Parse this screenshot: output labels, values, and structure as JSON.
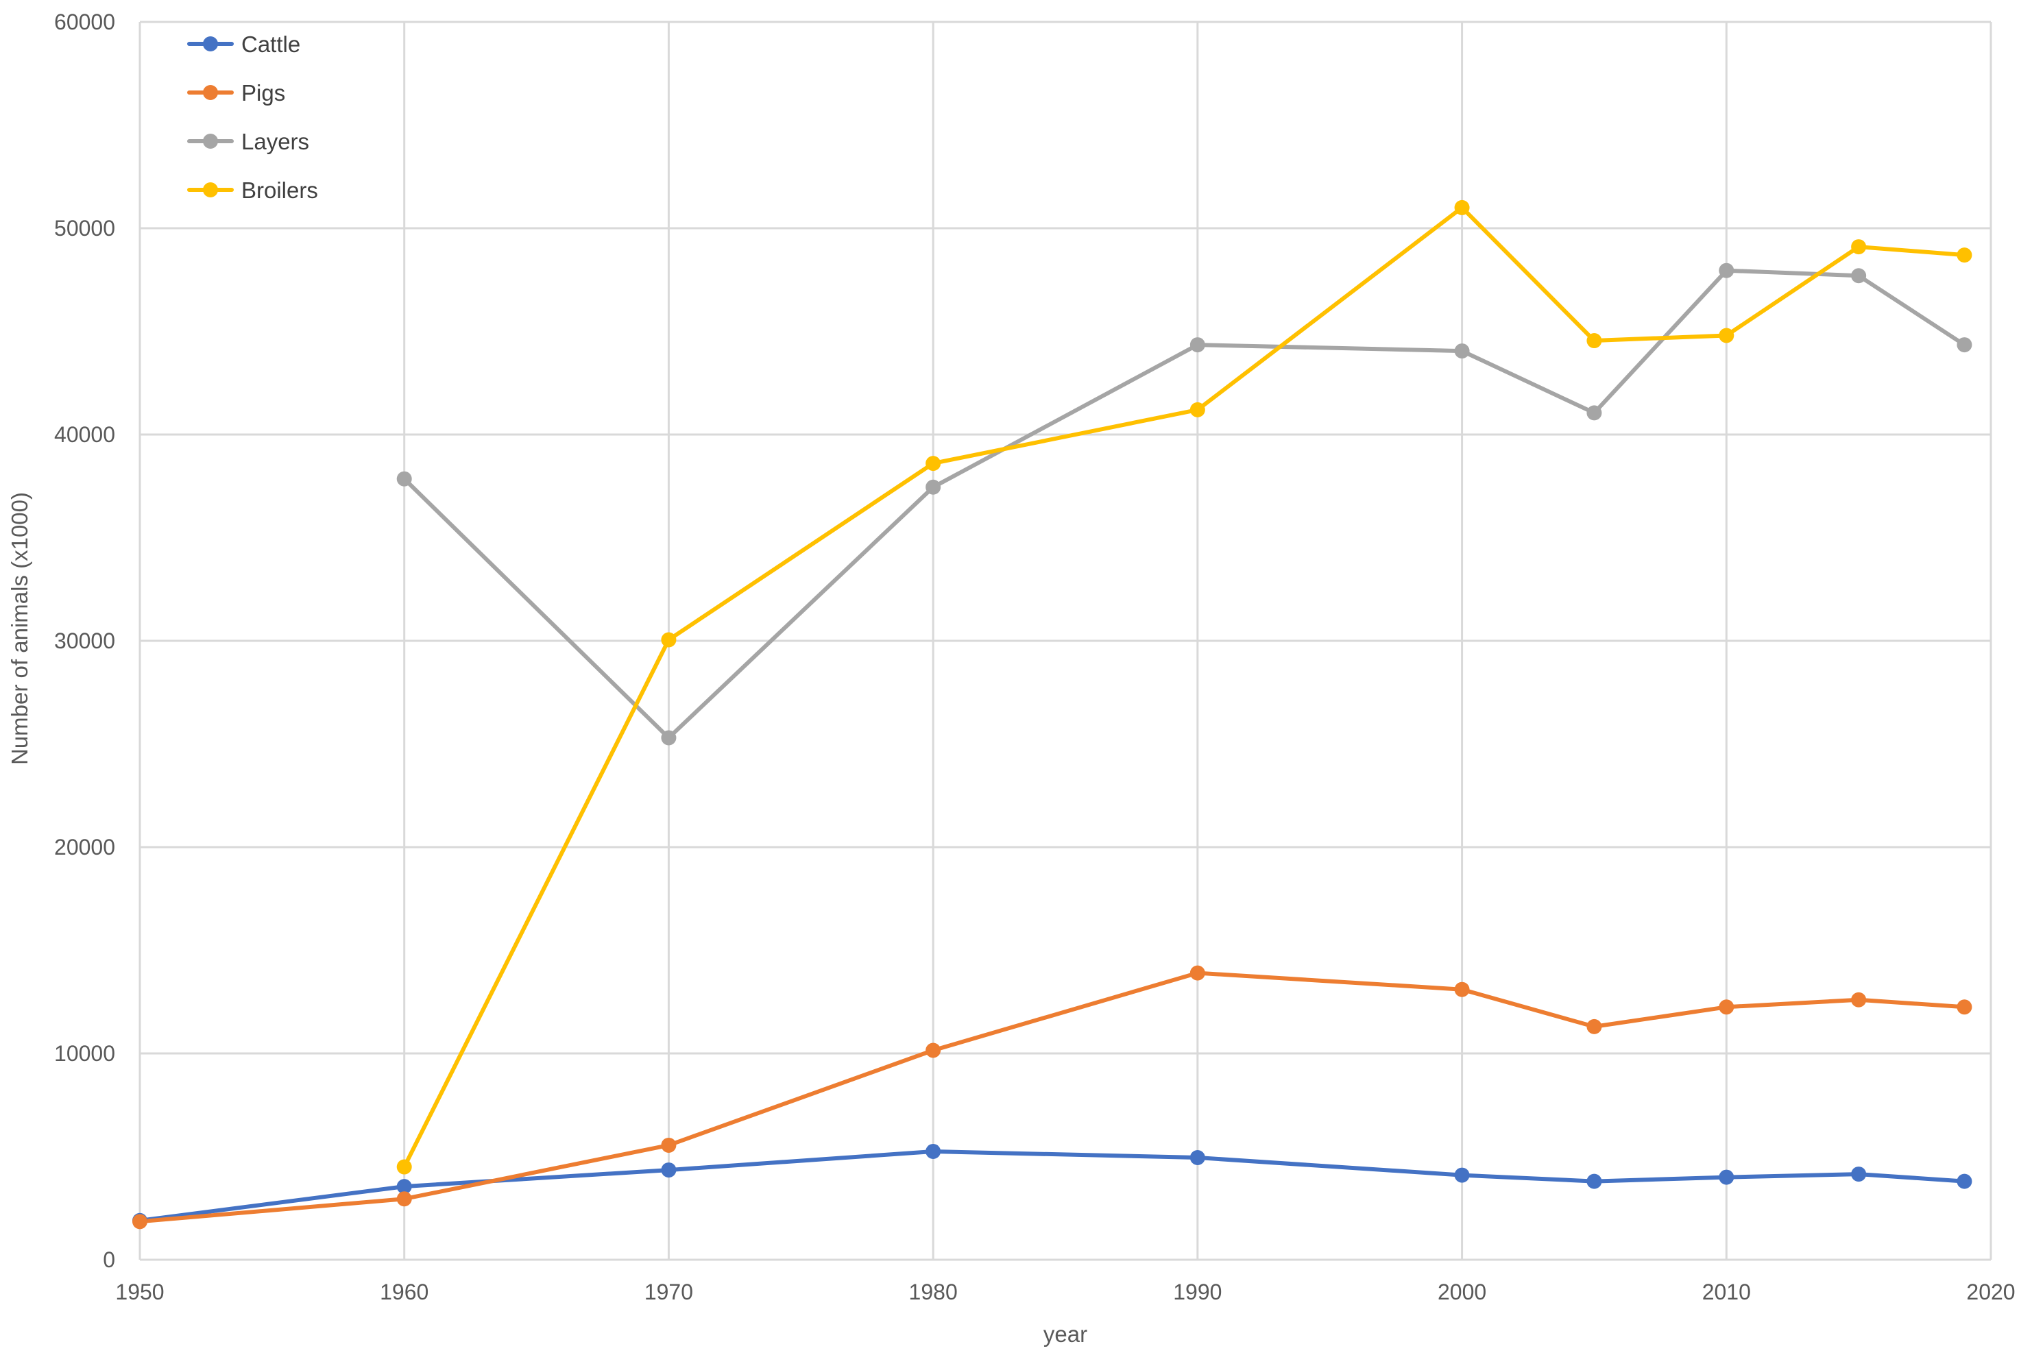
{
  "chart_data": {
    "type": "line",
    "title": "",
    "xlabel": "year",
    "ylabel": "Number of animals (x1000)",
    "xlim": [
      1950,
      2020
    ],
    "ylim": [
      0,
      60000
    ],
    "x_ticks": [
      1950,
      1960,
      1970,
      1980,
      1990,
      2000,
      2010,
      2020
    ],
    "y_ticks": [
      0,
      10000,
      20000,
      30000,
      40000,
      50000,
      60000
    ],
    "grid": true,
    "legend_position": "top-left",
    "series": [
      {
        "name": "Cattle",
        "color": "#4472c4",
        "points": [
          [
            1950,
            1900
          ],
          [
            1960,
            3550
          ],
          [
            1970,
            4350
          ],
          [
            1980,
            5250
          ],
          [
            1990,
            4950
          ],
          [
            2000,
            4100
          ],
          [
            2005,
            3800
          ],
          [
            2010,
            4000
          ],
          [
            2015,
            4150
          ],
          [
            2019,
            3800
          ]
        ]
      },
      {
        "name": "Pigs",
        "color": "#ed7d31",
        "points": [
          [
            1950,
            1850
          ],
          [
            1960,
            2950
          ],
          [
            1970,
            5550
          ],
          [
            1980,
            10150
          ],
          [
            1990,
            13900
          ],
          [
            2000,
            13100
          ],
          [
            2005,
            11300
          ],
          [
            2010,
            12250
          ],
          [
            2015,
            12600
          ],
          [
            2019,
            12250
          ]
        ]
      },
      {
        "name": "Layers",
        "color": "#a5a5a5",
        "points": [
          [
            1960,
            37850
          ],
          [
            1970,
            25300
          ],
          [
            1980,
            37450
          ],
          [
            1990,
            44350
          ],
          [
            2000,
            44050
          ],
          [
            2005,
            41050
          ],
          [
            2010,
            47950
          ],
          [
            2015,
            47700
          ],
          [
            2019,
            44350
          ]
        ]
      },
      {
        "name": "Broilers",
        "color": "#ffc000",
        "points": [
          [
            1960,
            4500
          ],
          [
            1970,
            30050
          ],
          [
            1980,
            38600
          ],
          [
            1990,
            41200
          ],
          [
            2000,
            51000
          ],
          [
            2005,
            44550
          ],
          [
            2010,
            44800
          ],
          [
            2015,
            49100
          ],
          [
            2019,
            48700
          ]
        ]
      }
    ]
  }
}
